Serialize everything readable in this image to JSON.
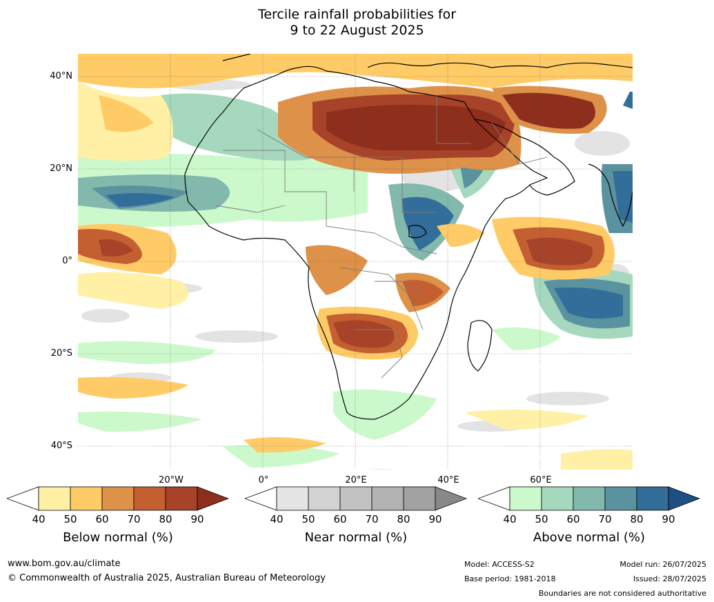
{
  "title": {
    "line1": "Tercile rainfall probabilities for",
    "line2": "9 to 22 August 2025"
  },
  "map": {
    "lat_labels": [
      "40°N",
      "20°N",
      "0°",
      "20°S",
      "40°S"
    ],
    "lon_labels": [
      "20°W",
      "0°",
      "20°E",
      "40°E",
      "60°E"
    ],
    "colors": {
      "ocean_bg": "#ffffff",
      "below": [
        "#fff0a5",
        "#ffcb66",
        "#de9148",
        "#c45f32",
        "#a74328",
        "#8e2e1d"
      ],
      "near": [
        "#e5e5e5",
        "#d2d2d2",
        "#c2c2c2",
        "#b3b3b3",
        "#a2a2a2",
        "#888888"
      ],
      "above": [
        "#ccf9cc",
        "#a5d8bd",
        "#82b9ac",
        "#5a939f",
        "#336d99",
        "#1d4e84"
      ]
    }
  },
  "colorbars": [
    {
      "label": "Below normal (%)",
      "ticks": [
        "40",
        "50",
        "60",
        "70",
        "80",
        "90"
      ]
    },
    {
      "label": "Near normal (%)",
      "ticks": [
        "40",
        "50",
        "60",
        "70",
        "80",
        "90"
      ]
    },
    {
      "label": "Above normal (%)",
      "ticks": [
        "40",
        "50",
        "60",
        "70",
        "80",
        "90"
      ]
    }
  ],
  "footer": {
    "website": "www.bom.gov.au/climate",
    "copyright": "© Commonwealth of Australia 2025, Australian Bureau of Meteorology",
    "model": "Model: ACCESS-S2",
    "base_period": "Base period: 1981-2018",
    "model_run": "Model run: 26/07/2025",
    "issued": "Issued: 28/07/2025",
    "disclaimer": "Boundaries are not considered authoritative"
  }
}
